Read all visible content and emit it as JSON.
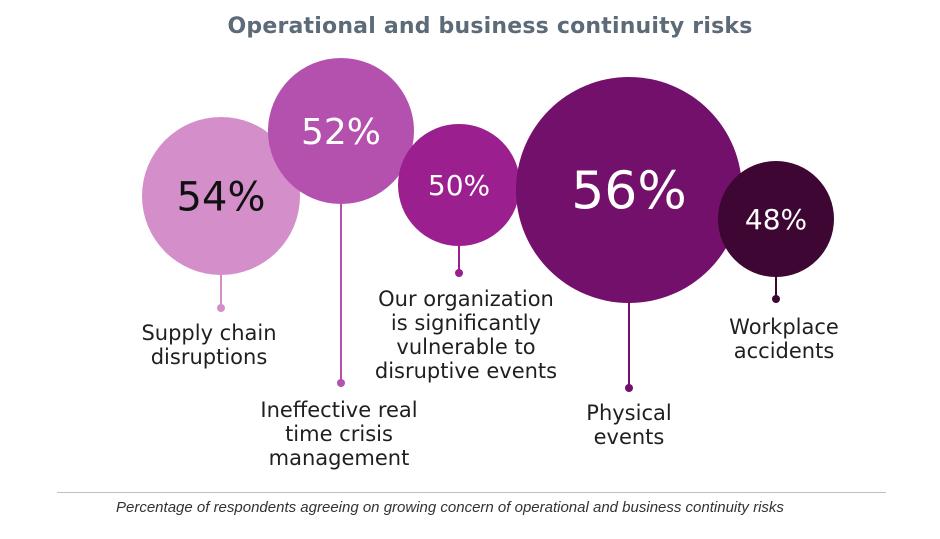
{
  "chart_data": {
    "type": "bubble",
    "title": "Operational and business continuity risks",
    "caption": "Percentage of respondents agreeing on growing concern of operational and business continuity risks",
    "unit": "%",
    "items": [
      {
        "label_lines": [
          "Supply chain",
          "disruptions"
        ],
        "value": 54,
        "value_text": "54%",
        "color": "#d48fcb",
        "text_color": "#111111"
      },
      {
        "label_lines": [
          "Ineffective real",
          "time crisis",
          "management"
        ],
        "value": 52,
        "value_text": "52%",
        "color": "#b450ae",
        "text_color": "#ffffff"
      },
      {
        "label_lines": [
          "Our organization",
          "is significantly",
          "vulnerable to",
          "disruptive events"
        ],
        "value": 50,
        "value_text": "50%",
        "color": "#9b1f8e",
        "text_color": "#ffffff"
      },
      {
        "label_lines": [
          "Physical",
          "events"
        ],
        "value": 56,
        "value_text": "56%",
        "color": "#73106b",
        "text_color": "#ffffff"
      },
      {
        "label_lines": [
          "Workplace",
          "accidents"
        ],
        "value": 48,
        "value_text": "48%",
        "color": "#3e0632",
        "text_color": "#ffffff"
      }
    ]
  }
}
